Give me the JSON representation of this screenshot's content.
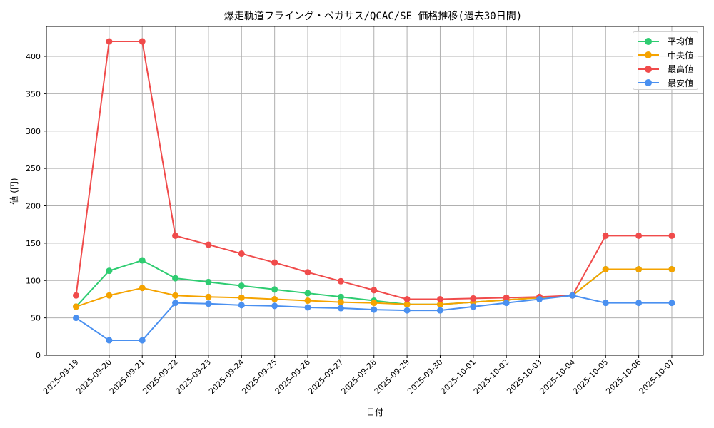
{
  "chart_data": {
    "type": "line",
    "title": "爆走軌道フライング・ペガサス/QCAC/SE 価格推移(過去30日間)",
    "xlabel": "日付",
    "ylabel": "値 (円)",
    "ylim": [
      0,
      440
    ],
    "yticks": [
      0,
      50,
      100,
      150,
      200,
      250,
      300,
      350,
      400
    ],
    "grid": true,
    "legend_position": "upper right",
    "categories": [
      "2025-09-19",
      "2025-09-20",
      "2025-09-21",
      "2025-09-22",
      "2025-09-23",
      "2025-09-24",
      "2025-09-25",
      "2025-09-26",
      "2025-09-27",
      "2025-09-28",
      "2025-09-29",
      "2025-09-30",
      "2025-10-01",
      "2025-10-02",
      "2025-10-03",
      "2025-10-04",
      "2025-10-05",
      "2025-10-06",
      "2025-10-07"
    ],
    "series": [
      {
        "name": "平均値",
        "color": "#2ecc71",
        "values": [
          65,
          113,
          127,
          103,
          98,
          93,
          88,
          83,
          78,
          73,
          68,
          68,
          71,
          74,
          77,
          80,
          115,
          115,
          115
        ]
      },
      {
        "name": "中央値",
        "color": "#f5a300",
        "values": [
          65,
          80,
          90,
          80,
          78,
          77,
          75,
          73,
          71,
          70,
          68,
          68,
          71,
          74,
          77,
          80,
          115,
          115,
          115
        ]
      },
      {
        "name": "最高値",
        "color": "#f04b4b",
        "values": [
          80,
          420,
          420,
          160,
          148,
          136,
          124,
          111,
          99,
          87,
          75,
          75,
          76,
          77,
          78,
          80,
          160,
          160,
          160
        ]
      },
      {
        "name": "最安値",
        "color": "#4a90f0",
        "values": [
          50,
          20,
          20,
          70,
          69,
          67,
          66,
          64,
          63,
          61,
          60,
          60,
          65,
          70,
          75,
          80,
          70,
          70,
          70
        ]
      }
    ]
  }
}
